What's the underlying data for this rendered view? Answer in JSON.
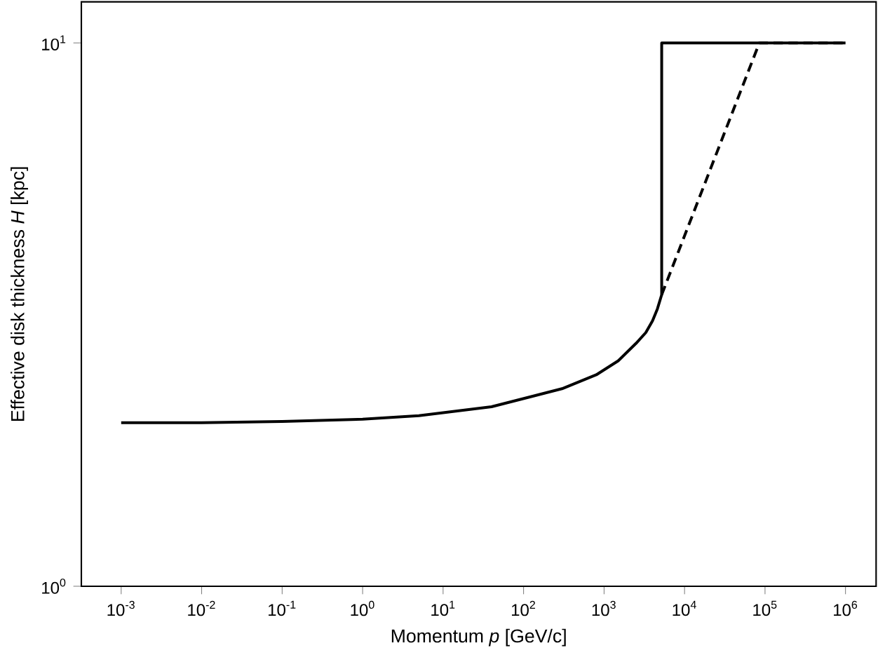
{
  "chart_data": {
    "type": "line",
    "xlabel": "Momentum *p* [GeV/c]",
    "ylabel": "Effective disk thickness *H* [kpc]",
    "log": "xy",
    "xlim": [
      0.00032,
      2400000
    ],
    "ylim": [
      1,
      11.9
    ],
    "xticks": [
      {
        "value": 0.001,
        "label": "10$^{-3}$"
      },
      {
        "value": 0.01,
        "label": "10$^{-2}$"
      },
      {
        "value": 0.1,
        "label": "10$^{-1}$"
      },
      {
        "value": 1,
        "label": "10$^{0}$"
      },
      {
        "value": 10,
        "label": "10$^{1}$"
      },
      {
        "value": 100,
        "label": "10$^{2}$"
      },
      {
        "value": 1000,
        "label": "10$^{3}$"
      },
      {
        "value": 10000,
        "label": "10$^{4}$"
      },
      {
        "value": 100000,
        "label": "10$^{5}$"
      },
      {
        "value": 1000000,
        "label": "10$^{6}$"
      }
    ],
    "yticks": [
      {
        "value": 1,
        "label": "10$^{0}$"
      },
      {
        "value": 10,
        "label": "10$^{1}$"
      }
    ],
    "grid": false,
    "marker": "none",
    "series": [
      {
        "color": "#000000",
        "line_style": "solid",
        "x": [
          0.001,
          0.01,
          0.1,
          1,
          5,
          40,
          300,
          800,
          1500,
          2500,
          3300,
          4000,
          4600,
          5200,
          5200,
          1000000
        ],
        "values": [
          2.0,
          2.0,
          2.01,
          2.03,
          2.06,
          2.14,
          2.31,
          2.45,
          2.6,
          2.8,
          2.93,
          3.08,
          3.24,
          3.44,
          10,
          10
        ]
      },
      {
        "color": "#000000",
        "line_style": "dashed",
        "x": [
          5200,
          85000,
          1000000
        ],
        "values": [
          3.44,
          10,
          10
        ]
      }
    ]
  }
}
